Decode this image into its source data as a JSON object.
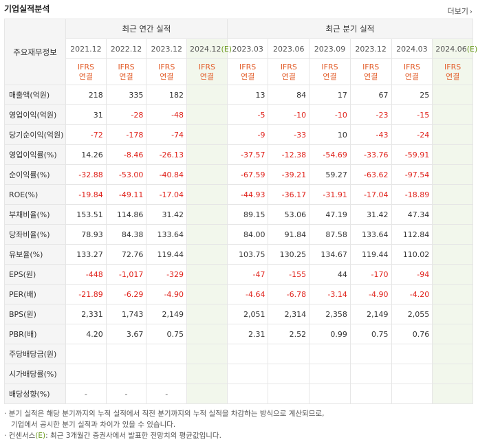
{
  "header": {
    "title": "기업실적분석",
    "more_label": "더보기"
  },
  "table": {
    "row_label_header": "주요재무정보",
    "group_annual": "최근 연간 실적",
    "group_quarter": "최근 분기 실적",
    "annual_periods": [
      "2021.12",
      "2022.12",
      "2023.12",
      "2024.12"
    ],
    "annual_estimate_suffix": "(E)",
    "quarter_periods": [
      "2023.03",
      "2023.06",
      "2023.09",
      "2023.12",
      "2024.03",
      "2024.06"
    ],
    "quarter_estimate_suffix": "(E)",
    "ifrs_top": "IFRS",
    "ifrs_bottom": "연결",
    "rows": [
      {
        "label": "매출액(억원)",
        "annual": [
          "218",
          "335",
          "182",
          ""
        ],
        "quarter": [
          "13",
          "84",
          "17",
          "67",
          "25",
          ""
        ]
      },
      {
        "label": "영업이익(억원)",
        "annual": [
          "31",
          "-28",
          "-48",
          ""
        ],
        "quarter": [
          "-5",
          "-10",
          "-10",
          "-23",
          "-15",
          ""
        ]
      },
      {
        "label": "당기순이익(억원)",
        "annual": [
          "-72",
          "-178",
          "-74",
          ""
        ],
        "quarter": [
          "-9",
          "-33",
          "10",
          "-43",
          "-24",
          ""
        ]
      },
      {
        "label": "영업이익률(%)",
        "annual": [
          "14.26",
          "-8.46",
          "-26.13",
          ""
        ],
        "quarter": [
          "-37.57",
          "-12.38",
          "-54.69",
          "-33.76",
          "-59.91",
          ""
        ]
      },
      {
        "label": "순이익률(%)",
        "annual": [
          "-32.88",
          "-53.00",
          "-40.84",
          ""
        ],
        "quarter": [
          "-67.59",
          "-39.21",
          "59.27",
          "-63.62",
          "-97.54",
          ""
        ]
      },
      {
        "label": "ROE(%)",
        "annual": [
          "-19.84",
          "-49.11",
          "-17.04",
          ""
        ],
        "quarter": [
          "-44.93",
          "-36.17",
          "-31.91",
          "-17.04",
          "-18.89",
          ""
        ]
      },
      {
        "label": "부채비율(%)",
        "annual": [
          "153.51",
          "114.86",
          "31.42",
          ""
        ],
        "quarter": [
          "89.15",
          "53.06",
          "47.19",
          "31.42",
          "47.34",
          ""
        ]
      },
      {
        "label": "당좌비율(%)",
        "annual": [
          "78.93",
          "84.38",
          "133.64",
          ""
        ],
        "quarter": [
          "84.00",
          "91.84",
          "87.58",
          "133.64",
          "112.84",
          ""
        ]
      },
      {
        "label": "유보율(%)",
        "annual": [
          "133.27",
          "72.76",
          "119.44",
          ""
        ],
        "quarter": [
          "103.75",
          "130.25",
          "134.67",
          "119.44",
          "110.02",
          ""
        ]
      },
      {
        "label": "EPS(원)",
        "annual": [
          "-448",
          "-1,017",
          "-329",
          ""
        ],
        "quarter": [
          "-47",
          "-155",
          "44",
          "-170",
          "-94",
          ""
        ]
      },
      {
        "label": "PER(배)",
        "annual": [
          "-21.89",
          "-6.29",
          "-4.90",
          ""
        ],
        "quarter": [
          "-4.64",
          "-6.78",
          "-3.14",
          "-4.90",
          "-4.20",
          ""
        ]
      },
      {
        "label": "BPS(원)",
        "annual": [
          "2,331",
          "1,743",
          "2,149",
          ""
        ],
        "quarter": [
          "2,051",
          "2,314",
          "2,358",
          "2,149",
          "2,055",
          ""
        ]
      },
      {
        "label": "PBR(배)",
        "annual": [
          "4.20",
          "3.67",
          "0.75",
          ""
        ],
        "quarter": [
          "2.31",
          "2.52",
          "0.99",
          "0.75",
          "0.76",
          ""
        ]
      },
      {
        "label": "주당배당금(원)",
        "annual": [
          "",
          "",
          "",
          ""
        ],
        "quarter": [
          "",
          "",
          "",
          "",
          "",
          ""
        ]
      },
      {
        "label": "시가배당률(%)",
        "annual": [
          "",
          "",
          "",
          ""
        ],
        "quarter": [
          "",
          "",
          "",
          "",
          "",
          ""
        ]
      },
      {
        "label": "배당성향(%)",
        "annual": [
          "-",
          "-",
          "-",
          ""
        ],
        "quarter": [
          "",
          "",
          "",
          "",
          "",
          ""
        ]
      }
    ]
  },
  "notes": {
    "line1": "· 분기 실적은 해당 분기까지의 누적 실적에서 직전 분기까지의 누적 실적을 차감하는 방식으로 계산되므로,",
    "line2": "기업에서 공시한 분기 실적과 차이가 있을 수 있습니다.",
    "line3_prefix": "· 컨센서스",
    "line3_e": "(E)",
    "line3_suffix": ": 최근 3개월간 증권사에서 발표한 전망치의 평균값입니다."
  },
  "colors": {
    "negative": "#e0221b",
    "ifrs": "#e25c29",
    "estimate_bg": "#f2f7ec",
    "estimate_mark": "#6a9a1f"
  }
}
